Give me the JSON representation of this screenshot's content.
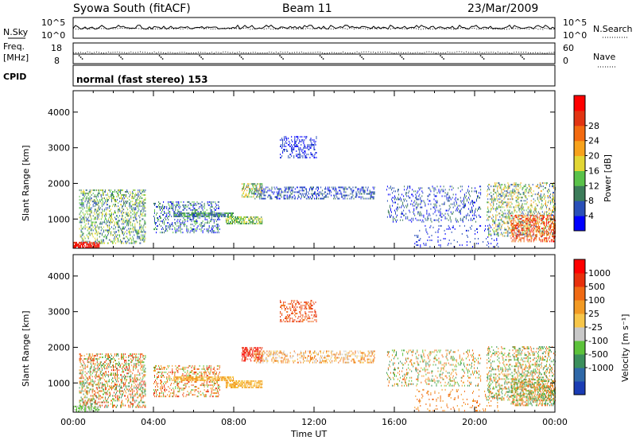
{
  "header": {
    "title": "Syowa South (fitACF)",
    "beam": "Beam 11",
    "date": "23/Mar/2009"
  },
  "noise_panel": {
    "left_label": "N.Sky",
    "right_label": "N.Search",
    "left_ticks": [
      "10^5",
      "10^0"
    ],
    "right_ticks": [
      "10^5",
      "10^0"
    ]
  },
  "freq_panel": {
    "left_label_line1": "Freq.",
    "left_label_line2": "[MHz]",
    "right_label": "Nave",
    "left_ticks": [
      "18",
      "8"
    ],
    "right_ticks": [
      "60",
      "0"
    ]
  },
  "cpid": {
    "label": "CPID",
    "value": "normal (fast stereo) 153"
  },
  "chart_data": [
    {
      "type": "heatmap",
      "name": "power",
      "ylabel": "Slant Range [km]",
      "ylim": [
        180,
        4600
      ],
      "yticks": [
        "1000",
        "2000",
        "3000",
        "4000"
      ],
      "xlim": [
        0,
        24
      ],
      "colorbar": {
        "label": "Power [dB]",
        "ticks": [
          "4",
          "8",
          "12",
          "16",
          "20",
          "24",
          "28"
        ],
        "colors": [
          "#0000ff",
          "#2a50b8",
          "#3c7c5a",
          "#5ac24a",
          "#e2d634",
          "#f7a21c",
          "#f36a10",
          "#e23412",
          "#ff0000"
        ]
      },
      "echo_regions": [
        {
          "t0": 0.3,
          "t1": 3.6,
          "r0": 300,
          "r1": 1800,
          "dens": 0.35,
          "levels": [
            1,
            2,
            3,
            4
          ]
        },
        {
          "t0": 0.0,
          "t1": 1.3,
          "r0": 180,
          "r1": 320,
          "dens": 0.8,
          "levels": [
            7,
            8
          ]
        },
        {
          "t0": 4.0,
          "t1": 7.3,
          "r0": 600,
          "r1": 1500,
          "dens": 0.28,
          "levels": [
            0,
            1,
            2,
            3
          ]
        },
        {
          "t0": 5.0,
          "t1": 8.0,
          "r0": 1050,
          "r1": 1150,
          "dens": 0.75,
          "levels": [
            1,
            2,
            3
          ]
        },
        {
          "t0": 7.6,
          "t1": 9.4,
          "r0": 850,
          "r1": 1050,
          "dens": 0.7,
          "levels": [
            2,
            3,
            4
          ]
        },
        {
          "t0": 8.4,
          "t1": 9.4,
          "r0": 1600,
          "r1": 2000,
          "dens": 0.5,
          "levels": [
            2,
            3,
            4,
            5
          ]
        },
        {
          "t0": 9.0,
          "t1": 15.0,
          "r0": 1550,
          "r1": 1900,
          "dens": 0.35,
          "levels": [
            0,
            1,
            1,
            2
          ]
        },
        {
          "t0": 10.3,
          "t1": 12.1,
          "r0": 2700,
          "r1": 3300,
          "dens": 0.3,
          "levels": [
            0,
            1
          ]
        },
        {
          "t0": 15.6,
          "t1": 20.3,
          "r0": 900,
          "r1": 1900,
          "dens": 0.18,
          "levels": [
            0,
            1,
            2
          ]
        },
        {
          "t0": 17.0,
          "t1": 21.2,
          "r0": 200,
          "r1": 800,
          "dens": 0.08,
          "levels": [
            0,
            1
          ]
        },
        {
          "t0": 20.6,
          "t1": 24.0,
          "r0": 500,
          "r1": 2000,
          "dens": 0.28,
          "levels": [
            1,
            2,
            3,
            4,
            5
          ]
        },
        {
          "t0": 21.8,
          "t1": 24.0,
          "r0": 350,
          "r1": 1100,
          "dens": 0.45,
          "levels": [
            5,
            6,
            7,
            8
          ]
        }
      ]
    },
    {
      "type": "heatmap",
      "name": "velocity",
      "ylabel": "Slant Range [km]",
      "xlabel": "Time UT",
      "ylim": [
        180,
        4600
      ],
      "yticks": [
        "1000",
        "2000",
        "3000",
        "4000"
      ],
      "xlim": [
        0,
        24
      ],
      "xticks": [
        "00:00",
        "04:00",
        "08:00",
        "12:00",
        "16:00",
        "20:00",
        "00:00"
      ],
      "colorbar": {
        "label": "Velocity [m s⁻¹]",
        "ticks": [
          "1000",
          "500",
          "100",
          "25",
          "-25",
          "-100",
          "-500",
          "-1000"
        ],
        "colors": [
          "#1a3cb4",
          "#2f68a8",
          "#3b8f5c",
          "#5cc23a",
          "#c8c8c8",
          "#f7c64a",
          "#f29a24",
          "#f06a14",
          "#e8300c",
          "#ff0000"
        ]
      },
      "echo_regions": [
        {
          "t0": 0.3,
          "t1": 3.6,
          "r0": 300,
          "r1": 1800,
          "dens": 0.35,
          "levels": [
            2,
            3,
            6,
            7,
            8
          ]
        },
        {
          "t0": 0.0,
          "t1": 1.3,
          "r0": 180,
          "r1": 320,
          "dens": 0.8,
          "levels": [
            3,
            4
          ]
        },
        {
          "t0": 4.0,
          "t1": 7.3,
          "r0": 600,
          "r1": 1500,
          "dens": 0.28,
          "levels": [
            6,
            7,
            8,
            3
          ]
        },
        {
          "t0": 5.0,
          "t1": 8.0,
          "r0": 1050,
          "r1": 1150,
          "dens": 0.75,
          "levels": [
            5,
            6
          ]
        },
        {
          "t0": 7.6,
          "t1": 9.4,
          "r0": 850,
          "r1": 1050,
          "dens": 0.7,
          "levels": [
            5,
            5,
            6
          ]
        },
        {
          "t0": 8.4,
          "t1": 9.4,
          "r0": 1600,
          "r1": 2000,
          "dens": 0.5,
          "levels": [
            8,
            9,
            8
          ]
        },
        {
          "t0": 9.0,
          "t1": 15.0,
          "r0": 1550,
          "r1": 1900,
          "dens": 0.35,
          "levels": [
            5,
            6,
            4,
            7
          ]
        },
        {
          "t0": 10.3,
          "t1": 12.1,
          "r0": 2700,
          "r1": 3300,
          "dens": 0.3,
          "levels": [
            7,
            8
          ]
        },
        {
          "t0": 15.6,
          "t1": 20.3,
          "r0": 900,
          "r1": 1900,
          "dens": 0.18,
          "levels": [
            6,
            7,
            3,
            2
          ]
        },
        {
          "t0": 17.0,
          "t1": 21.2,
          "r0": 200,
          "r1": 800,
          "dens": 0.08,
          "levels": [
            6,
            7
          ]
        },
        {
          "t0": 20.6,
          "t1": 24.0,
          "r0": 500,
          "r1": 2000,
          "dens": 0.28,
          "levels": [
            3,
            2,
            6,
            7
          ]
        },
        {
          "t0": 21.8,
          "t1": 24.0,
          "r0": 350,
          "r1": 1100,
          "dens": 0.45,
          "levels": [
            6,
            7,
            2,
            3
          ]
        }
      ]
    }
  ]
}
